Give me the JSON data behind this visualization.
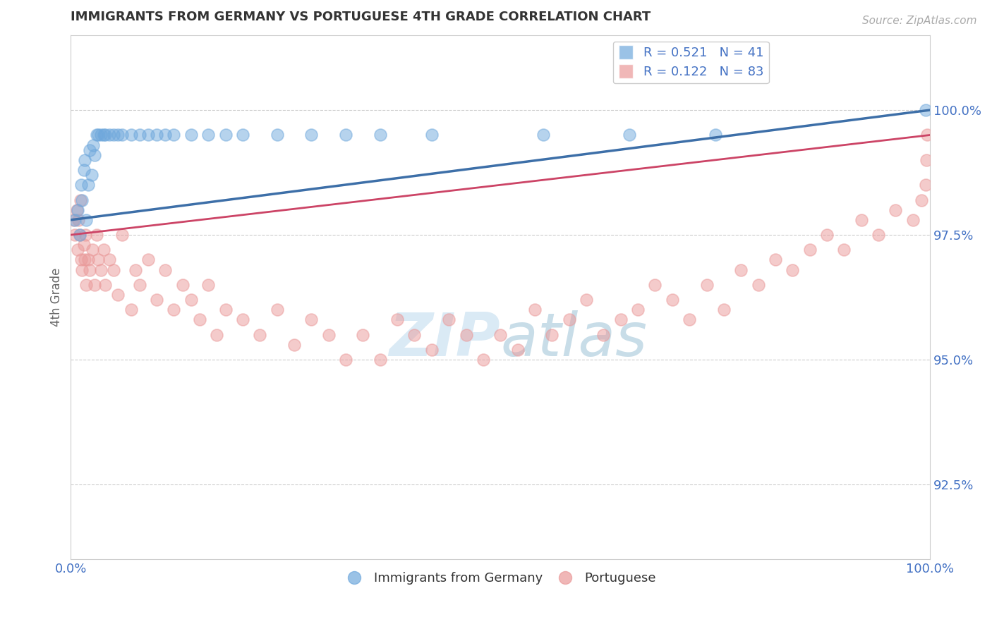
{
  "title": "IMMIGRANTS FROM GERMANY VS PORTUGUESE 4TH GRADE CORRELATION CHART",
  "source_text": "Source: ZipAtlas.com",
  "ylabel": "4th Grade",
  "xlim": [
    0.0,
    100.0
  ],
  "ylim": [
    91.0,
    101.5
  ],
  "yticks": [
    92.5,
    95.0,
    97.5,
    100.0
  ],
  "ytick_labels": [
    "92.5%",
    "95.0%",
    "97.5%",
    "100.0%"
  ],
  "xtick_labels": [
    "0.0%",
    "100.0%"
  ],
  "legend_x_labels": [
    "Immigrants from Germany",
    "Portuguese"
  ],
  "blue_R": 0.521,
  "blue_N": 41,
  "pink_R": 0.122,
  "pink_N": 83,
  "blue_color": "#6fa8dc",
  "pink_color": "#ea9999",
  "blue_line_color": "#3d6fa8",
  "pink_line_color": "#cc4466",
  "background_color": "#ffffff",
  "grid_color": "#cccccc",
  "title_color": "#333333",
  "axis_label_color": "#666666",
  "tick_label_color": "#4472c4",
  "watermark_color": "#daeaf5",
  "blue_scatter_x": [
    0.5,
    0.8,
    1.0,
    1.2,
    1.3,
    1.5,
    1.6,
    1.8,
    2.0,
    2.2,
    2.4,
    2.6,
    2.8,
    3.0,
    3.2,
    3.5,
    3.8,
    4.0,
    4.5,
    5.0,
    5.5,
    6.0,
    7.0,
    8.0,
    9.0,
    10.0,
    11.0,
    12.0,
    14.0,
    16.0,
    18.0,
    20.0,
    24.0,
    28.0,
    32.0,
    36.0,
    42.0,
    55.0,
    65.0,
    75.0,
    99.5
  ],
  "blue_scatter_y": [
    97.8,
    98.0,
    97.5,
    98.5,
    98.2,
    98.8,
    99.0,
    97.8,
    98.5,
    99.2,
    98.7,
    99.3,
    99.1,
    99.5,
    99.5,
    99.5,
    99.5,
    99.5,
    99.5,
    99.5,
    99.5,
    99.5,
    99.5,
    99.5,
    99.5,
    99.5,
    99.5,
    99.5,
    99.5,
    99.5,
    99.5,
    99.5,
    99.5,
    99.5,
    99.5,
    99.5,
    99.5,
    99.5,
    99.5,
    99.5,
    100.0
  ],
  "pink_scatter_x": [
    0.3,
    0.5,
    0.7,
    0.8,
    0.9,
    1.0,
    1.1,
    1.2,
    1.3,
    1.5,
    1.6,
    1.7,
    1.8,
    2.0,
    2.2,
    2.5,
    2.8,
    3.0,
    3.2,
    3.5,
    3.8,
    4.0,
    4.5,
    5.0,
    5.5,
    6.0,
    7.0,
    7.5,
    8.0,
    9.0,
    10.0,
    11.0,
    12.0,
    13.0,
    14.0,
    15.0,
    16.0,
    17.0,
    18.0,
    20.0,
    22.0,
    24.0,
    26.0,
    28.0,
    30.0,
    32.0,
    34.0,
    36.0,
    38.0,
    40.0,
    42.0,
    44.0,
    46.0,
    48.0,
    50.0,
    52.0,
    54.0,
    56.0,
    58.0,
    60.0,
    62.0,
    64.0,
    66.0,
    68.0,
    70.0,
    72.0,
    74.0,
    76.0,
    78.0,
    80.0,
    82.0,
    84.0,
    86.0,
    88.0,
    90.0,
    92.0,
    94.0,
    96.0,
    98.0,
    99.0,
    99.5,
    99.6,
    99.7
  ],
  "pink_scatter_y": [
    97.8,
    97.5,
    98.0,
    97.2,
    97.8,
    97.5,
    98.2,
    97.0,
    96.8,
    97.3,
    97.0,
    97.5,
    96.5,
    97.0,
    96.8,
    97.2,
    96.5,
    97.5,
    97.0,
    96.8,
    97.2,
    96.5,
    97.0,
    96.8,
    96.3,
    97.5,
    96.0,
    96.8,
    96.5,
    97.0,
    96.2,
    96.8,
    96.0,
    96.5,
    96.2,
    95.8,
    96.5,
    95.5,
    96.0,
    95.8,
    95.5,
    96.0,
    95.3,
    95.8,
    95.5,
    95.0,
    95.5,
    95.0,
    95.8,
    95.5,
    95.2,
    95.8,
    95.5,
    95.0,
    95.5,
    95.2,
    96.0,
    95.5,
    95.8,
    96.2,
    95.5,
    95.8,
    96.0,
    96.5,
    96.2,
    95.8,
    96.5,
    96.0,
    96.8,
    96.5,
    97.0,
    96.8,
    97.2,
    97.5,
    97.2,
    97.8,
    97.5,
    98.0,
    97.8,
    98.2,
    98.5,
    99.0,
    99.5
  ],
  "blue_trendline_x": [
    0.0,
    100.0
  ],
  "blue_trendline_y": [
    97.8,
    100.0
  ],
  "pink_trendline_x": [
    0.0,
    100.0
  ],
  "pink_trendline_y": [
    97.5,
    99.5
  ]
}
